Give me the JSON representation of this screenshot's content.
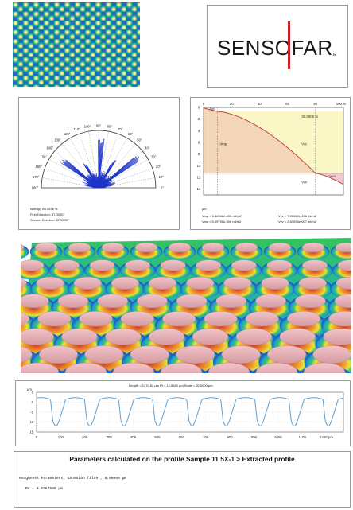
{
  "logo": {
    "text": "SENSOFAR",
    "mark": "R"
  },
  "polar": {
    "angles": [
      "180°",
      "170°",
      "160°",
      "150°",
      "140°",
      "130°",
      "120°",
      "110°",
      "100°",
      "90°",
      "80°",
      "70°",
      "60°",
      "50°",
      "40°",
      "30°",
      "20°",
      "10°",
      "0°"
    ],
    "isotropy": "Isotropy 66.3036 %",
    "first_direction": "First Direction: 37.0000°",
    "second_direction": "Second Direction: 87.0000°"
  },
  "bearing": {
    "x_ticks": [
      "0",
      "20",
      "40",
      "60",
      "80",
      "100 %"
    ],
    "y_ticks": [
      "0",
      "2",
      "4",
      "6",
      "8",
      "10",
      "12",
      "14"
    ],
    "unit": "µm",
    "inner_label": "30.0000 %",
    "vmp_label": "Vmp",
    "vmc_label": "Vmc",
    "vvc_label": "Vvc",
    "vvv_label": "Vvv",
    "spk_label": "Spk",
    "pct_label": "Ssk%",
    "vmp": "Vmp = 1.48948e-006 ml/m2",
    "vvc": "Vvc = 7.00069e-006 ml/m2",
    "vmc": "Vmc = 5.69791e-006 ml/m2",
    "vvv": "Vvv = 2.63094e-007 ml/m2"
  },
  "profile": {
    "header": "Length = 1270.62 µm  Pt = 12.8840 µm  Scale = 20.0000 µm",
    "y_unit": "µm",
    "y_ticks": [
      "5",
      "0",
      "-5",
      "-10",
      "-15"
    ],
    "x_ticks": [
      "0",
      "100",
      "200",
      "300",
      "400",
      "500",
      "600",
      "700",
      "800",
      "900",
      "1000",
      "1100",
      "1200 µm"
    ]
  },
  "params": {
    "title": "Parameters calculated on the profile Sample 11 5X-1 > Extracted profile",
    "line1": "Roughness Parameters, Gaussian filter, 8.00000 µm",
    "line2": "Ra    = 0.0367509 µm"
  },
  "colors": {
    "bearing_fill": "#f3d6b8",
    "bearing_yellow": "#fbf6c5",
    "polar_blue": "#1f35c8",
    "curve_red": "#c2423e",
    "profile_blue": "#5fa0d0"
  }
}
